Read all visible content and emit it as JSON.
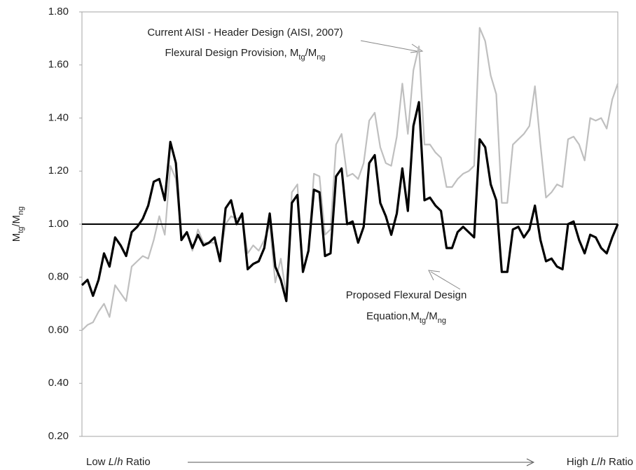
{
  "chart_data": {
    "type": "line",
    "ylabel": [
      {
        "text": "M"
      },
      {
        "text": "tg",
        "sub": true
      },
      {
        "text": "/M"
      },
      {
        "text": "ng",
        "sub": true
      }
    ],
    "ylim": [
      0.2,
      1.8
    ],
    "yticks": [
      {
        "value": 0.2,
        "label": "0.20"
      },
      {
        "value": 0.4,
        "label": "0.40"
      },
      {
        "value": 0.6,
        "label": "0.60"
      },
      {
        "value": 0.8,
        "label": "0.80"
      },
      {
        "value": 1.0,
        "label": "1.00"
      },
      {
        "value": 1.2,
        "label": "1.20"
      },
      {
        "value": 1.4,
        "label": "1.40"
      },
      {
        "value": 1.6,
        "label": "1.60"
      },
      {
        "value": 1.8,
        "label": "1.80"
      }
    ],
    "hline": 1.0,
    "hline_color": "#000000",
    "x_label_left": [
      {
        "text": "Low "
      },
      {
        "text": "L",
        "italic": true
      },
      {
        "text": "/"
      },
      {
        "text": "h",
        "italic": true
      },
      {
        "text": " Ratio"
      }
    ],
    "x_label_right": [
      {
        "text": "High "
      },
      {
        "text": "L",
        "italic": true
      },
      {
        "text": "/"
      },
      {
        "text": "h",
        "italic": true
      },
      {
        "text": " Ratio"
      }
    ],
    "annotations": [
      {
        "lines": [
          [
            {
              "text": "Current AISI - Header Design (AISI, 2007)"
            }
          ],
          [
            {
              "text": "Flexural Design Provision, M"
            },
            {
              "text": "tg",
              "sub": true
            },
            {
              "text": "/M"
            },
            {
              "text": "ng",
              "sub": true
            }
          ]
        ]
      },
      {
        "lines": [
          [
            {
              "text": "Proposed Flexural Design"
            }
          ],
          [
            {
              "text": "Equation,M"
            },
            {
              "text": "tg",
              "sub": true
            },
            {
              "text": "/M"
            },
            {
              "text": "ng",
              "sub": true
            }
          ]
        ]
      }
    ],
    "series": [
      {
        "color": "#bfbfbf",
        "values": [
          0.6,
          0.62,
          0.63,
          0.67,
          0.7,
          0.65,
          0.77,
          0.74,
          0.71,
          0.84,
          0.86,
          0.88,
          0.87,
          0.94,
          1.03,
          0.96,
          1.22,
          1.17,
          0.95,
          0.97,
          0.9,
          0.98,
          0.93,
          0.93,
          0.93,
          0.88,
          1.0,
          1.03,
          1.02,
          1.03,
          0.89,
          0.92,
          0.9,
          0.94,
          1.0,
          0.78,
          0.87,
          0.73,
          1.12,
          1.15,
          0.82,
          0.9,
          1.19,
          1.18,
          0.96,
          0.98,
          1.3,
          1.34,
          1.18,
          1.19,
          1.17,
          1.23,
          1.39,
          1.42,
          1.29,
          1.23,
          1.22,
          1.33,
          1.53,
          1.34,
          1.58,
          1.67,
          1.3,
          1.3,
          1.27,
          1.25,
          1.14,
          1.14,
          1.17,
          1.19,
          1.2,
          1.22,
          1.74,
          1.69,
          1.56,
          1.49,
          1.08,
          1.08,
          1.3,
          1.32,
          1.34,
          1.37,
          1.52,
          1.3,
          1.1,
          1.12,
          1.15,
          1.14,
          1.32,
          1.33,
          1.3,
          1.24,
          1.4,
          1.39,
          1.4,
          1.36,
          1.47,
          1.53
        ]
      },
      {
        "color": "#000000",
        "values": [
          0.77,
          0.79,
          0.73,
          0.79,
          0.89,
          0.84,
          0.95,
          0.92,
          0.88,
          0.97,
          0.99,
          1.02,
          1.07,
          1.16,
          1.17,
          1.09,
          1.31,
          1.23,
          0.94,
          0.97,
          0.91,
          0.96,
          0.92,
          0.93,
          0.95,
          0.86,
          1.06,
          1.09,
          1.0,
          1.04,
          0.83,
          0.85,
          0.86,
          0.91,
          1.04,
          0.84,
          0.79,
          0.71,
          1.08,
          1.11,
          0.82,
          0.9,
          1.13,
          1.12,
          0.88,
          0.89,
          1.18,
          1.21,
          1.0,
          1.01,
          0.93,
          0.99,
          1.23,
          1.26,
          1.08,
          1.03,
          0.96,
          1.04,
          1.21,
          1.05,
          1.37,
          1.46,
          1.09,
          1.1,
          1.07,
          1.05,
          0.91,
          0.91,
          0.97,
          0.99,
          0.97,
          0.95,
          1.32,
          1.29,
          1.15,
          1.09,
          0.82,
          0.82,
          0.98,
          0.99,
          0.95,
          0.98,
          1.07,
          0.94,
          0.86,
          0.87,
          0.84,
          0.83,
          1.0,
          1.01,
          0.94,
          0.89,
          0.96,
          0.95,
          0.91,
          0.89,
          0.95,
          1.0
        ]
      }
    ]
  }
}
